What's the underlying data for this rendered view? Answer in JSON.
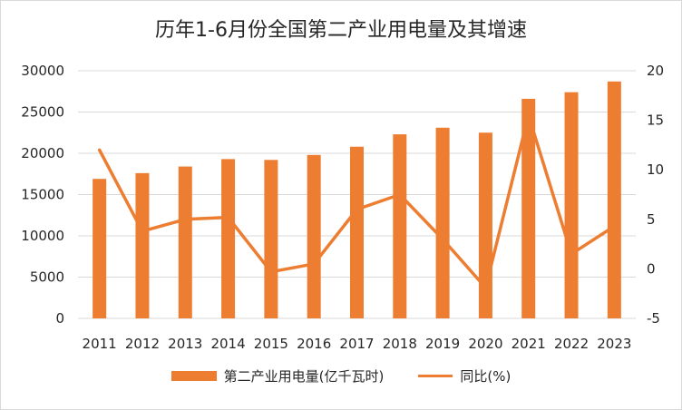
{
  "chart_data": {
    "type": "bar",
    "title": "历年1-6月份全国第二产业用电量及其增速",
    "categories": [
      "2011",
      "2012",
      "2013",
      "2014",
      "2015",
      "2016",
      "2017",
      "2018",
      "2019",
      "2020",
      "2021",
      "2022",
      "2023"
    ],
    "series": [
      {
        "name": "第二产业用电量(亿千瓦时)",
        "type": "bar",
        "axis": "left",
        "values": [
          16900,
          17600,
          18400,
          19300,
          19200,
          19800,
          20800,
          22300,
          23100,
          22500,
          26600,
          27400,
          28700
        ]
      },
      {
        "name": "同比(%)",
        "type": "line",
        "axis": "right",
        "values": [
          12.0,
          3.8,
          5.0,
          5.2,
          -0.3,
          0.5,
          6.0,
          7.5,
          3.0,
          -1.9,
          15.5,
          1.5,
          4.3
        ]
      }
    ],
    "y_left": {
      "min": 0,
      "max": 30000,
      "ticks": [
        "30000",
        "25000",
        "20000",
        "15000",
        "10000",
        "5000",
        "0"
      ]
    },
    "y_right": {
      "min": -5,
      "max": 20,
      "ticks": [
        "20",
        "15",
        "10",
        "5",
        "0",
        "-5"
      ]
    },
    "grid": true,
    "legend_position": "bottom",
    "colors": {
      "bar": "#ED7D31",
      "line": "#ED7D31",
      "grid": "#d9d9d9"
    }
  }
}
